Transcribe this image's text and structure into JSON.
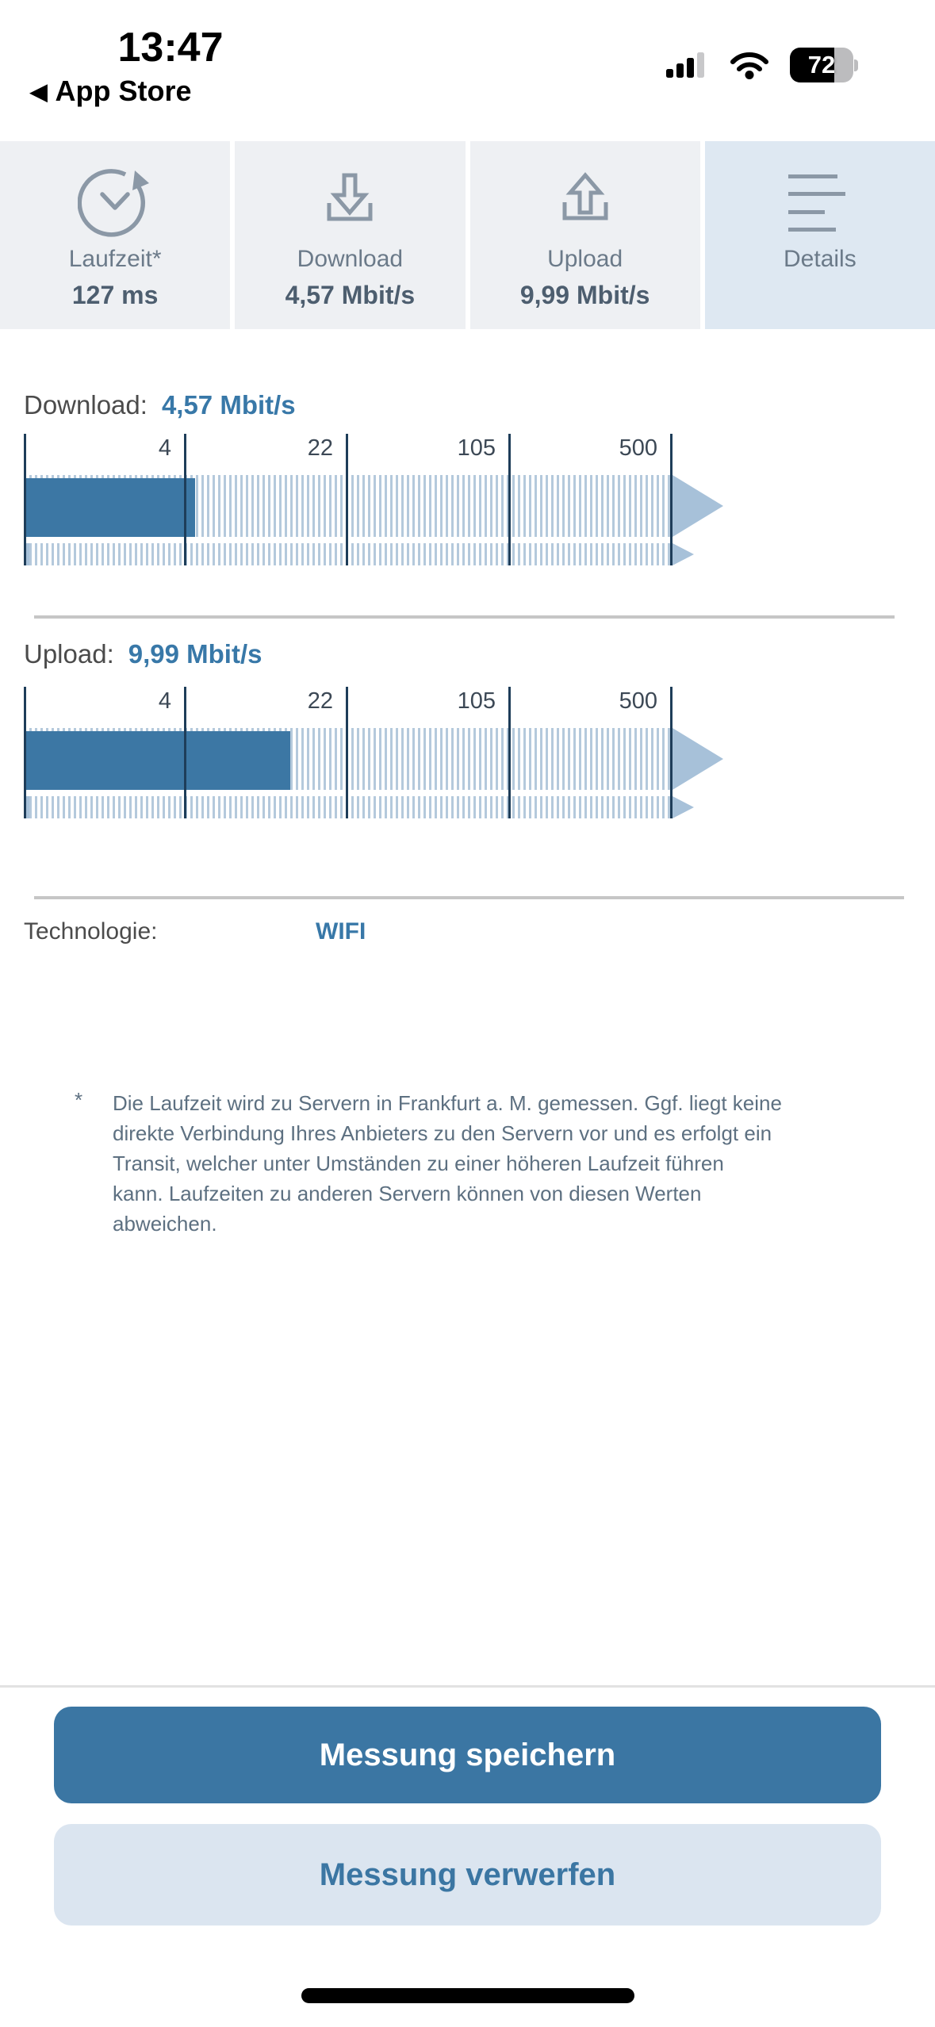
{
  "status_bar": {
    "time": "13:47",
    "back_label": "App Store",
    "back_chevron": "◀",
    "battery_percent": "72"
  },
  "tabs": [
    {
      "label": "Laufzeit*",
      "value": "127 ms",
      "icon": "clock-refresh-icon",
      "selected": false
    },
    {
      "label": "Download",
      "value": "4,57 Mbit/s",
      "icon": "download-icon",
      "selected": false
    },
    {
      "label": "Upload",
      "value": "9,99 Mbit/s",
      "icon": "upload-icon",
      "selected": false
    },
    {
      "label": "Details",
      "value": "",
      "icon": "list-lines-icon",
      "selected": true
    }
  ],
  "scale": {
    "ticks": [
      "4",
      "22",
      "105",
      "500"
    ],
    "unit": "Mbit/s",
    "type": "logarithmic"
  },
  "download": {
    "label": "Download:",
    "value": "4,57 Mbit/s",
    "fill_percent": 24
  },
  "upload": {
    "label": "Upload:",
    "value": "9,99 Mbit/s",
    "fill_percent": 37.3
  },
  "technology": {
    "label": "Technologie:",
    "value": "WIFI"
  },
  "footnote": {
    "marker": "*",
    "text": "Die Laufzeit wird zu Servern in Frankfurt a. M. gemessen. Ggf. liegt keine\ndirekte Verbindung Ihres Anbieters zu den Servern vor und es erfolgt ein\nTransit, welcher unter Umständen zu einer höheren Laufzeit führen\nkann. Laufzeiten zu anderen Servern können von diesen Werten\nabweichen."
  },
  "buttons": {
    "save": "Messung speichern",
    "discard": "Messung verwerfen"
  },
  "colors": {
    "accent_blue": "#3b76a3",
    "value_blue": "#3878a8",
    "stripe_blue": "#b4c9dc",
    "arrow_blue": "#a7c1d9",
    "tick_navy": "#1e3d59",
    "tab_bg": "#eef0f3",
    "tab_selected_bg": "#dee8f2",
    "icon_gray": "#8b98a6",
    "footnote_gray": "#5d7081"
  }
}
